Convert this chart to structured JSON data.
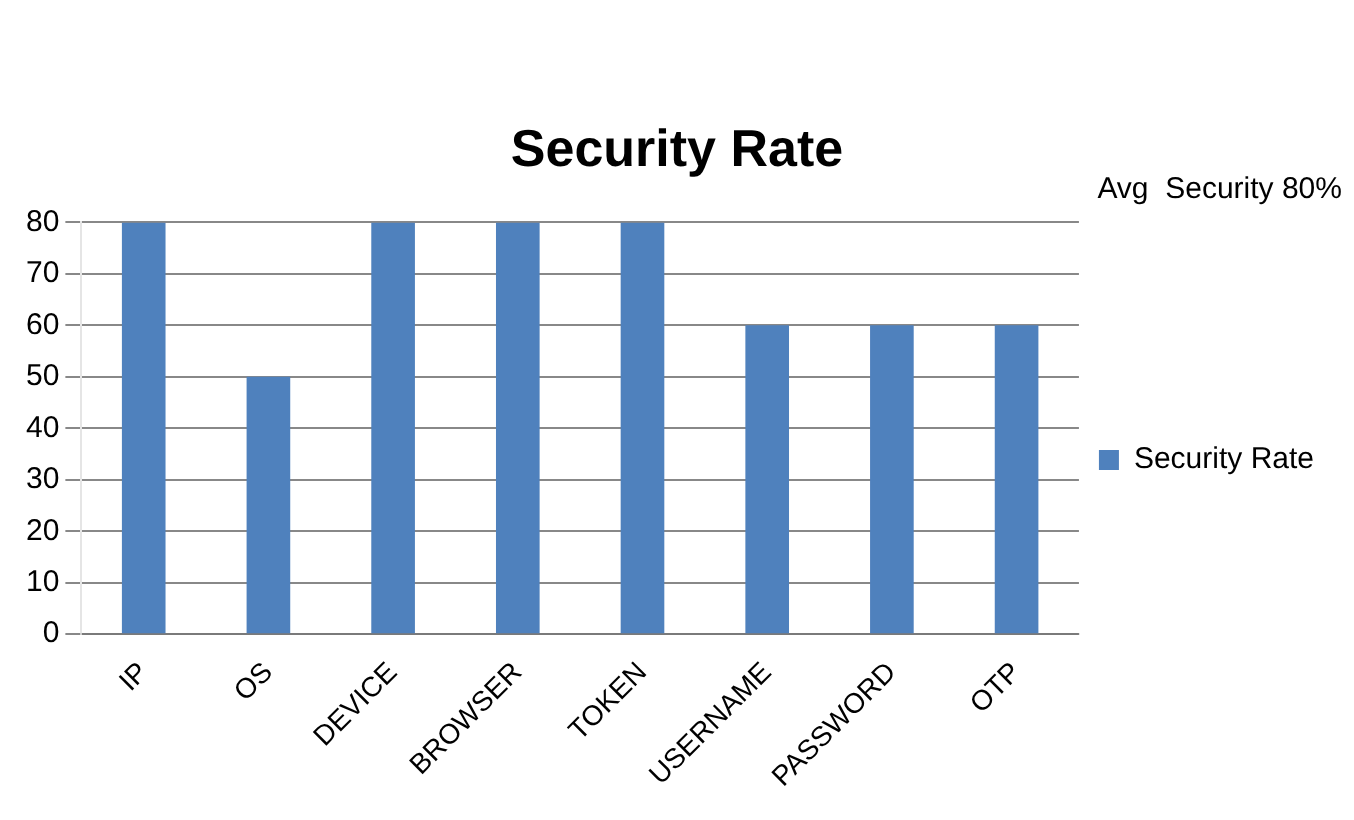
{
  "chart_data": {
    "type": "bar",
    "title": "Security Rate",
    "categories": [
      "IP",
      "OS",
      "DEVICE",
      "BROWSER",
      "TOKEN",
      "USERNAME",
      "PASSWORD",
      "OTP"
    ],
    "series": [
      {
        "name": "Security Rate",
        "color": "#4f81bd",
        "values": [
          80,
          50,
          80,
          80,
          80,
          60,
          60,
          60
        ]
      }
    ],
    "ylim": [
      0,
      80
    ],
    "yticks": [
      0,
      10,
      20,
      30,
      40,
      50,
      60,
      70,
      80
    ],
    "grid": "y",
    "legend": "right",
    "annotations": [
      "Avg  Security 80%"
    ]
  }
}
